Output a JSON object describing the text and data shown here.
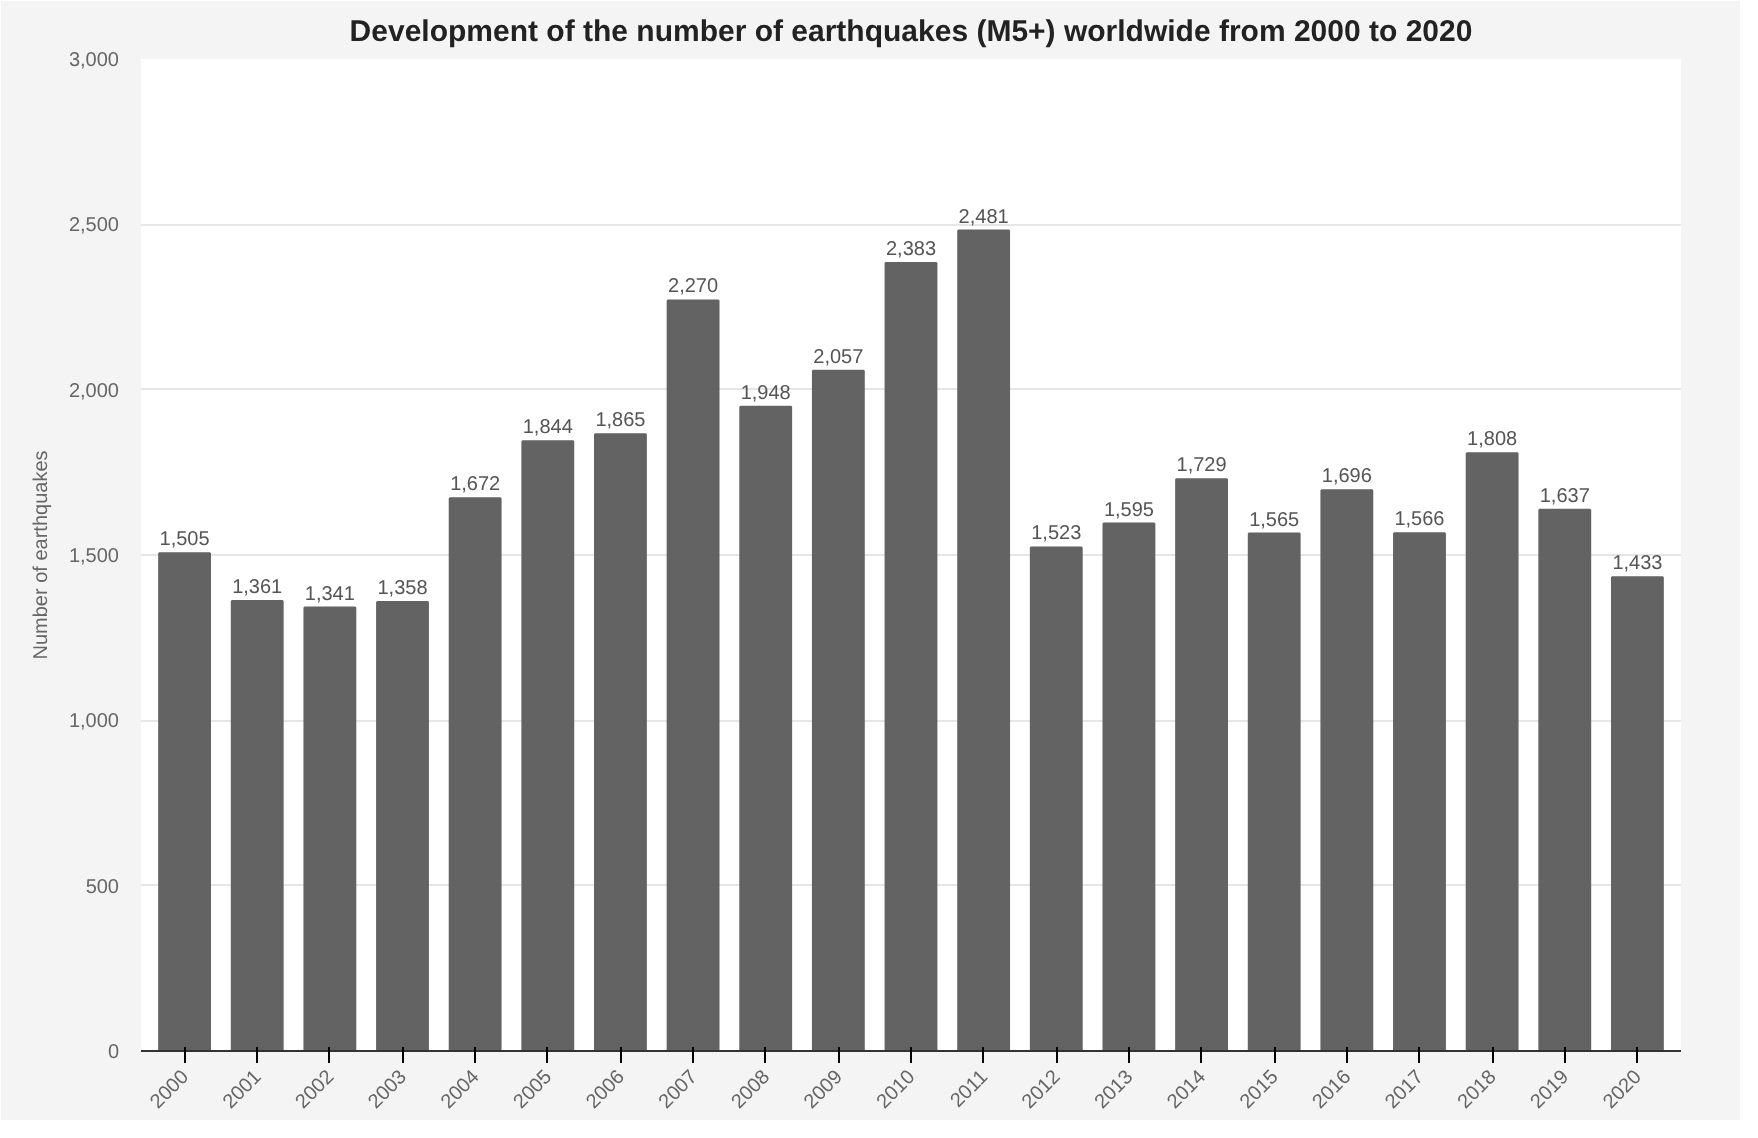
{
  "chart_data": {
    "type": "bar",
    "title": "Development of the number of earthquakes (M5+) worldwide from 2000 to 2020",
    "ylabel": "Number of earthquakes",
    "categories": [
      "2000",
      "2001",
      "2002",
      "2003",
      "2004",
      "2005",
      "2006",
      "2007",
      "2008",
      "2009",
      "2010",
      "2011",
      "2012",
      "2013",
      "2014",
      "2015",
      "2016",
      "2017",
      "2018",
      "2019",
      "2020"
    ],
    "values": [
      1505,
      1361,
      1341,
      1358,
      1672,
      1844,
      1865,
      2270,
      1948,
      2057,
      2383,
      2481,
      1523,
      1595,
      1729,
      1565,
      1696,
      1566,
      1808,
      1637,
      1433
    ],
    "color": "#636363",
    "ylim": [
      0,
      3000
    ],
    "yticks": [
      {
        "value": 0,
        "label": "0"
      },
      {
        "value": 500,
        "label": "500"
      },
      {
        "value": 1000,
        "label": "1,000"
      },
      {
        "value": 1500,
        "label": "1,500"
      },
      {
        "value": 2000,
        "label": "2,000"
      },
      {
        "value": 2500,
        "label": "2,500"
      },
      {
        "value": 3000,
        "label": "3,000"
      }
    ],
    "grid": "y",
    "value_labels": [
      "1,505",
      "1,361",
      "1,341",
      "1,358",
      "1,672",
      "1,844",
      "1,865",
      "2,270",
      "1,948",
      "2,057",
      "2,383",
      "2,481",
      "1,523",
      "1,595",
      "1,729",
      "1,565",
      "1,696",
      "1,566",
      "1,808",
      "1,637",
      "1,433"
    ]
  }
}
